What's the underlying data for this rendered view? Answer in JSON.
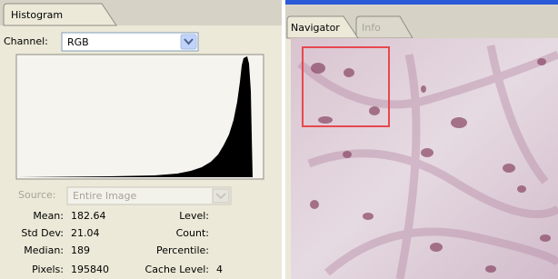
{
  "histogram_panel": {
    "tab": "Histogram",
    "channel_label": "Channel:",
    "channel_value": "RGB",
    "source_label": "Source:",
    "source_value": "Entire Image",
    "stats": [
      {
        "label": "Mean:",
        "value": 182.64
      },
      {
        "label": "Std Dev:",
        "value": 21.04
      },
      {
        "label": "Median:",
        "value": 189
      },
      {
        "label": "Pixels:",
        "value": 195840
      }
    ],
    "right_stats": [
      {
        "label": "Level:"
      },
      {
        "label": "Count:"
      },
      {
        "label": "Percentile:"
      },
      {
        "label": "Cache Level:",
        "value": 4
      }
    ]
  },
  "navigator_panel": {
    "tabs": [
      "Navigator",
      "Info"
    ]
  }
}
